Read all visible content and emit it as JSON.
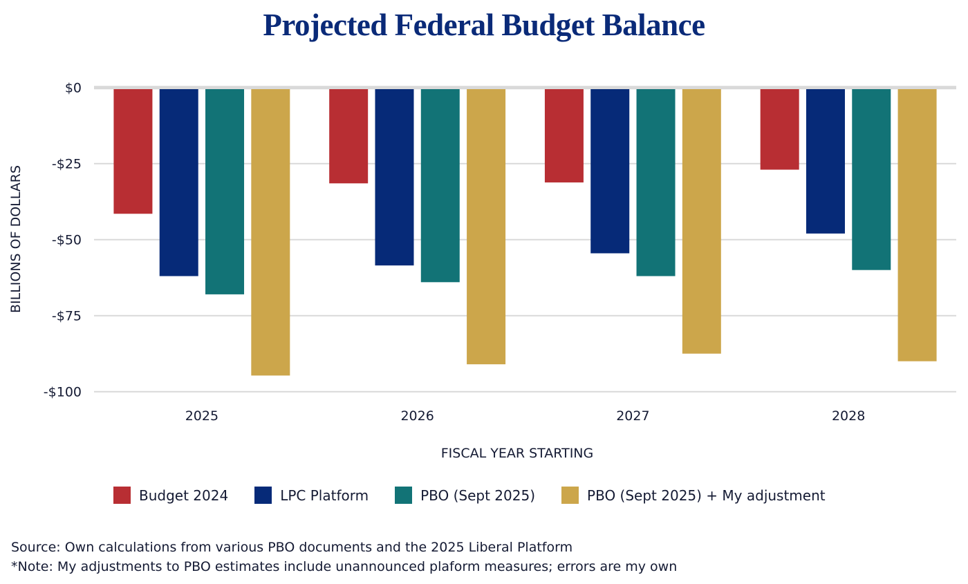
{
  "chart_data": {
    "type": "bar",
    "title": "Projected Federal Budget Balance",
    "xlabel": "FISCAL YEAR STARTING",
    "ylabel": "BILLIONS OF DOLLARS",
    "categories": [
      "2025",
      "2026",
      "2027",
      "2028"
    ],
    "ylim": [
      -100,
      0
    ],
    "yticks": [
      0,
      -25,
      -50,
      -75,
      -100
    ],
    "ytick_labels": [
      "$0",
      "-$25",
      "-$50",
      "-$75",
      "-$100"
    ],
    "grid": true,
    "legend_position": "bottom",
    "series": [
      {
        "name": "Budget 2024",
        "color": "#b82e33",
        "values": [
          -41.5,
          -31.5,
          -31.2,
          -27
        ]
      },
      {
        "name": "LPC Platform",
        "color": "#062a78",
        "values": [
          -62,
          -58.5,
          -54.5,
          -48
        ]
      },
      {
        "name": "PBO (Sept 2025)",
        "color": "#127376",
        "values": [
          -68,
          -64,
          -62,
          -60
        ]
      },
      {
        "name": "PBO (Sept 2025) + My adjustment",
        "color": "#cca64b",
        "values": [
          -94.7,
          -91,
          -87.5,
          -90
        ]
      }
    ],
    "annotations": [
      "Source: Own calculations from various PBO documents and the 2025 Liberal Platform",
      "*Note: My adjustments to PBO estimates include unannounced plaform measures; errors are my own"
    ]
  },
  "colors": {
    "title": "#0a2a78",
    "grid": "#d9d9d9"
  }
}
